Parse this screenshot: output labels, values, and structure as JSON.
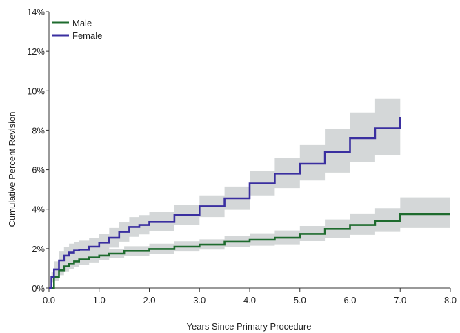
{
  "chart_data": {
    "type": "line",
    "title": "",
    "xlabel": "Years Since Primary Procedure",
    "ylabel": "Cumulative Percent Revision",
    "xlim": [
      0,
      8
    ],
    "ylim": [
      0,
      14
    ],
    "x_ticks": [
      "0.0",
      "1.0",
      "2.0",
      "3.0",
      "4.0",
      "5.0",
      "6.0",
      "7.0",
      "8.0"
    ],
    "y_ticks": [
      "0%",
      "2%",
      "4%",
      "6%",
      "8%",
      "10%",
      "12%",
      "14%"
    ],
    "grid": false,
    "legend_position": "top-left",
    "series": [
      {
        "name": "Male",
        "color": "#1e6b2e",
        "band_color": "#d4d7d8",
        "x": [
          0,
          0.1,
          0.2,
          0.3,
          0.4,
          0.5,
          0.6,
          0.8,
          1.0,
          1.2,
          1.5,
          2.0,
          2.5,
          3.0,
          3.5,
          4.0,
          4.5,
          5.0,
          5.5,
          6.0,
          6.5,
          7.0,
          8.0
        ],
        "values": [
          0,
          0.55,
          0.9,
          1.1,
          1.25,
          1.35,
          1.45,
          1.55,
          1.65,
          1.75,
          1.88,
          1.98,
          2.1,
          2.2,
          2.35,
          2.45,
          2.55,
          2.75,
          3.0,
          3.2,
          3.4,
          3.75,
          3.75
        ],
        "lower": [
          0,
          0.35,
          0.65,
          0.85,
          0.98,
          1.08,
          1.18,
          1.3,
          1.42,
          1.52,
          1.62,
          1.72,
          1.85,
          1.95,
          2.07,
          2.15,
          2.22,
          2.38,
          2.55,
          2.7,
          2.85,
          3.05,
          3.05
        ],
        "upper": [
          0,
          0.75,
          1.15,
          1.37,
          1.52,
          1.62,
          1.72,
          1.82,
          1.9,
          1.99,
          2.12,
          2.25,
          2.37,
          2.47,
          2.65,
          2.78,
          2.92,
          3.15,
          3.48,
          3.75,
          4.05,
          4.6,
          4.6
        ]
      },
      {
        "name": "Female",
        "color": "#3a2fa0",
        "band_color": "#d4d7d8",
        "x": [
          0,
          0.05,
          0.1,
          0.2,
          0.3,
          0.4,
          0.5,
          0.6,
          0.8,
          1.0,
          1.2,
          1.4,
          1.6,
          1.8,
          2.0,
          2.5,
          3.0,
          3.5,
          4.0,
          4.5,
          5.0,
          5.5,
          6.0,
          6.5,
          7.0
        ],
        "values": [
          0,
          0.55,
          0.95,
          1.4,
          1.65,
          1.8,
          1.9,
          1.95,
          2.1,
          2.3,
          2.55,
          2.85,
          3.1,
          3.2,
          3.35,
          3.7,
          4.15,
          4.55,
          5.3,
          5.8,
          6.3,
          6.9,
          7.6,
          8.1,
          8.65
        ],
        "lower": [
          0,
          0.3,
          0.6,
          1.0,
          1.22,
          1.37,
          1.48,
          1.55,
          1.7,
          1.87,
          2.05,
          2.35,
          2.6,
          2.72,
          2.87,
          3.2,
          3.6,
          3.97,
          4.7,
          5.07,
          5.45,
          5.85,
          6.4,
          6.75,
          7.05
        ],
        "upper": [
          0,
          0.8,
          1.35,
          1.85,
          2.1,
          2.25,
          2.33,
          2.4,
          2.55,
          2.75,
          3.05,
          3.35,
          3.6,
          3.7,
          3.85,
          4.2,
          4.7,
          5.15,
          5.95,
          6.6,
          7.25,
          8.05,
          8.9,
          9.6,
          10.5
        ]
      }
    ]
  }
}
